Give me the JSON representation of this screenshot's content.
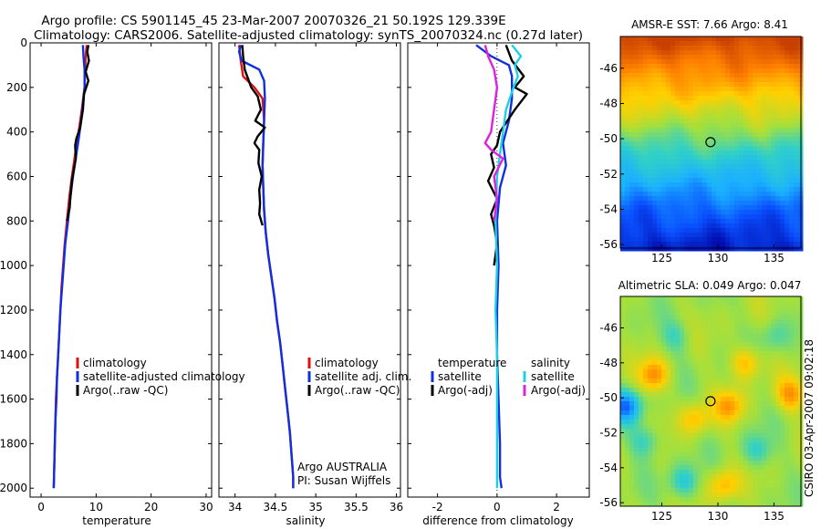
{
  "header": {
    "line1": "Argo profile: CS 5901145_45 23-Mar-2007 20070326_21 50.192S 129.339E",
    "line2": "Climatology: CARS2006. Satellite-adjusted climatology: synTS_20070324.nc (0.27d later)"
  },
  "watermark": "CSIRO 03-Apr-2007 09:02:18",
  "colors": {
    "climatology": "#e01010",
    "satellite": "#1030e0",
    "argo": "#000000",
    "salinity_satellite": "#20d0e0",
    "salinity_argo": "#e020e0"
  },
  "chart_data": [
    {
      "type": "line",
      "id": "temperature",
      "xlabel": "temperature",
      "ylabel": "",
      "xlim": [
        -2,
        31
      ],
      "ylim": [
        2040,
        0
      ],
      "xticks": [
        0,
        10,
        20,
        30
      ],
      "yticks": [
        0,
        200,
        400,
        600,
        800,
        1000,
        1200,
        1400,
        1600,
        1800,
        2000
      ],
      "legend": [
        "climatology",
        "satellite-adjusted climatology",
        "Argo(..raw -QC)"
      ],
      "series": [
        {
          "name": "climatology",
          "color": "climatology",
          "points": [
            [
              8.3,
              10
            ],
            [
              8.1,
              60
            ],
            [
              8.0,
              120
            ],
            [
              7.9,
              200
            ],
            [
              7.4,
              300
            ],
            [
              6.7,
              420
            ],
            [
              6.2,
              500
            ],
            [
              5.6,
              600
            ],
            [
              5.1,
              700
            ],
            [
              4.7,
              800
            ],
            [
              4.3,
              900
            ],
            [
              4.0,
              1000
            ],
            [
              3.7,
              1100
            ],
            [
              3.5,
              1200
            ],
            [
              3.3,
              1300
            ],
            [
              3.1,
              1400
            ],
            [
              2.9,
              1500
            ],
            [
              2.7,
              1600
            ],
            [
              2.6,
              1700
            ],
            [
              2.5,
              1800
            ],
            [
              2.4,
              1900
            ],
            [
              2.3,
              2000
            ]
          ]
        },
        {
          "name": "satellite-adjusted climatology",
          "color": "satellite",
          "points": [
            [
              7.6,
              10
            ],
            [
              7.7,
              60
            ],
            [
              7.9,
              120
            ],
            [
              7.9,
              200
            ],
            [
              7.5,
              300
            ],
            [
              6.9,
              420
            ],
            [
              6.4,
              500
            ],
            [
              5.8,
              600
            ],
            [
              5.3,
              700
            ],
            [
              4.9,
              800
            ],
            [
              4.4,
              900
            ],
            [
              4.1,
              1000
            ],
            [
              3.8,
              1100
            ],
            [
              3.5,
              1200
            ],
            [
              3.3,
              1300
            ],
            [
              3.1,
              1400
            ],
            [
              2.9,
              1500
            ],
            [
              2.8,
              1600
            ],
            [
              2.6,
              1700
            ],
            [
              2.5,
              1800
            ],
            [
              2.4,
              1900
            ],
            [
              2.3,
              2000
            ]
          ]
        },
        {
          "name": "Argo(..raw -QC)",
          "color": "argo",
          "points": [
            [
              8.6,
              10
            ],
            [
              8.4,
              40
            ],
            [
              8.7,
              80
            ],
            [
              8.1,
              130
            ],
            [
              8.6,
              170
            ],
            [
              7.8,
              230
            ],
            [
              7.6,
              300
            ],
            [
              7.1,
              380
            ],
            [
              6.4,
              430
            ],
            [
              6.2,
              460
            ],
            [
              6.3,
              520
            ],
            [
              5.6,
              620
            ],
            [
              5.3,
              700
            ],
            [
              5.2,
              740
            ],
            [
              4.7,
              800
            ]
          ]
        }
      ]
    },
    {
      "type": "line",
      "id": "salinity",
      "xlabel": "salinity",
      "ylabel": "",
      "xlim": [
        33.8,
        36.05
      ],
      "ylim": [
        2040,
        0
      ],
      "xticks": [
        34,
        34.5,
        35,
        35.5,
        36
      ],
      "yticks": [
        0,
        200,
        400,
        600,
        800,
        1000,
        1200,
        1400,
        1600,
        1800,
        2000
      ],
      "legend": [
        "climatology",
        "satellite adj. clim.",
        "Argo(..raw -QC)"
      ],
      "annotation": [
        "Argo AUSTRALIA",
        "PI: Susan Wijffels"
      ],
      "series": [
        {
          "name": "climatology",
          "color": "climatology",
          "points": [
            [
              34.05,
              10
            ],
            [
              34.07,
              80
            ],
            [
              34.1,
              150
            ],
            [
              34.24,
              200
            ],
            [
              34.34,
              250
            ],
            [
              34.36,
              350
            ],
            [
              34.35,
              450
            ],
            [
              34.34,
              550
            ],
            [
              34.35,
              650
            ],
            [
              34.36,
              750
            ],
            [
              34.38,
              850
            ],
            [
              34.41,
              950
            ],
            [
              34.45,
              1050
            ],
            [
              34.49,
              1150
            ],
            [
              34.52,
              1250
            ],
            [
              34.56,
              1350
            ],
            [
              34.59,
              1450
            ],
            [
              34.62,
              1550
            ],
            [
              34.65,
              1650
            ],
            [
              34.68,
              1750
            ],
            [
              34.7,
              1850
            ],
            [
              34.72,
              1950
            ],
            [
              34.72,
              2000
            ]
          ]
        },
        {
          "name": "satellite adj. clim.",
          "color": "satellite",
          "points": [
            [
              34.07,
              10
            ],
            [
              34.05,
              40
            ],
            [
              34.08,
              80
            ],
            [
              34.3,
              120
            ],
            [
              34.36,
              170
            ],
            [
              34.37,
              250
            ],
            [
              34.36,
              350
            ],
            [
              34.35,
              450
            ],
            [
              34.34,
              550
            ],
            [
              34.35,
              650
            ],
            [
              34.36,
              750
            ],
            [
              34.38,
              850
            ],
            [
              34.41,
              950
            ],
            [
              34.45,
              1050
            ],
            [
              34.49,
              1150
            ],
            [
              34.52,
              1250
            ],
            [
              34.56,
              1350
            ],
            [
              34.59,
              1450
            ],
            [
              34.62,
              1550
            ],
            [
              34.65,
              1650
            ],
            [
              34.68,
              1750
            ],
            [
              34.7,
              1850
            ],
            [
              34.72,
              1950
            ],
            [
              34.72,
              2000
            ]
          ]
        },
        {
          "name": "Argo(..raw -QC)",
          "color": "argo",
          "points": [
            [
              34.09,
              10
            ],
            [
              34.1,
              60
            ],
            [
              34.12,
              120
            ],
            [
              34.2,
              200
            ],
            [
              34.28,
              240
            ],
            [
              34.32,
              300
            ],
            [
              34.25,
              350
            ],
            [
              34.37,
              380
            ],
            [
              34.28,
              420
            ],
            [
              34.24,
              450
            ],
            [
              34.3,
              480
            ],
            [
              34.29,
              540
            ],
            [
              34.33,
              600
            ],
            [
              34.3,
              660
            ],
            [
              34.31,
              720
            ],
            [
              34.3,
              770
            ],
            [
              34.34,
              820
            ]
          ]
        }
      ]
    },
    {
      "type": "line",
      "id": "difference",
      "xlabel": "difference from climatology",
      "ylabel": "",
      "xlim": [
        -3,
        3.1
      ],
      "ylim": [
        2040,
        0
      ],
      "xticks": [
        -2,
        0,
        2
      ],
      "yticks": [
        0,
        200,
        400,
        600,
        800,
        1000,
        1200,
        1400,
        1600,
        1800,
        2000
      ],
      "legend_temperature_title": "temperature",
      "legend_temperature": [
        "satellite",
        "Argo(-adj)"
      ],
      "legend_salinity_title": "salinity",
      "legend_salinity": [
        "satellite",
        "Argo(-adj)"
      ],
      "series": [
        {
          "name": "temperature satellite",
          "color": "satellite",
          "points": [
            [
              -0.7,
              10
            ],
            [
              -0.2,
              60
            ],
            [
              0.4,
              100
            ],
            [
              0.5,
              150
            ],
            [
              0.5,
              250
            ],
            [
              0.4,
              350
            ],
            [
              0.2,
              450
            ],
            [
              0.3,
              550
            ],
            [
              0.1,
              650
            ],
            [
              0.0,
              800
            ],
            [
              0.05,
              1000
            ],
            [
              0.0,
              1200
            ],
            [
              0.0,
              1400
            ],
            [
              0.05,
              1600
            ],
            [
              0.1,
              1800
            ],
            [
              0.1,
              1950
            ],
            [
              0.15,
              2000
            ]
          ]
        },
        {
          "name": "temperature Argo(-adj)",
          "color": "argo",
          "points": [
            [
              0.3,
              10
            ],
            [
              0.5,
              80
            ],
            [
              0.9,
              150
            ],
            [
              0.6,
              200
            ],
            [
              1.0,
              230
            ],
            [
              0.6,
              300
            ],
            [
              0.1,
              400
            ],
            [
              0.0,
              460
            ],
            [
              -0.2,
              500
            ],
            [
              -0.1,
              560
            ],
            [
              -0.3,
              620
            ],
            [
              0.0,
              700
            ],
            [
              -0.2,
              770
            ],
            [
              -0.1,
              820
            ],
            [
              0.0,
              900
            ],
            [
              -0.1,
              1000
            ]
          ]
        },
        {
          "name": "salinity satellite",
          "color": "salinity_satellite",
          "points": [
            [
              0.5,
              10
            ],
            [
              0.8,
              60
            ],
            [
              0.6,
              100
            ],
            [
              0.7,
              150
            ],
            [
              0.5,
              220
            ],
            [
              0.3,
              300
            ],
            [
              0.2,
              400
            ],
            [
              0.1,
              500
            ],
            [
              0.0,
              600
            ],
            [
              -0.05,
              800
            ],
            [
              0.0,
              1000
            ],
            [
              -0.05,
              1200
            ],
            [
              0.0,
              1400
            ],
            [
              0.0,
              1600
            ],
            [
              0.0,
              1800
            ],
            [
              0.0,
              2000
            ]
          ]
        },
        {
          "name": "salinity Argo(-adj)",
          "color": "salinity_argo",
          "points": [
            [
              -0.4,
              10
            ],
            [
              -0.3,
              60
            ],
            [
              -0.1,
              120
            ],
            [
              0.0,
              200
            ],
            [
              -0.1,
              300
            ],
            [
              -0.2,
              400
            ],
            [
              -0.4,
              450
            ],
            [
              -0.2,
              480
            ],
            [
              0.2,
              520
            ],
            [
              -0.1,
              600
            ],
            [
              0.0,
              700
            ],
            [
              -0.1,
              800
            ]
          ]
        }
      ]
    },
    {
      "type": "heatmap",
      "id": "sst_map",
      "title": "AMSR-E SST: 7.66 Argo: 8.41",
      "xlim": [
        121.3,
        137.4
      ],
      "ylim": [
        -56.2,
        -44.2
      ],
      "xticks": [
        125,
        130,
        135
      ],
      "yticks": [
        -46,
        -48,
        -50,
        -52,
        -54,
        -56
      ],
      "marker": [
        129.339,
        -50.192
      ],
      "palette": [
        "#0000a0",
        "#0a50ff",
        "#1ab0ff",
        "#30d0c8",
        "#a0e040",
        "#ffd000",
        "#ff8000",
        "#c84000"
      ],
      "bands": [
        {
          "lat": -44.2,
          "level": 7.0
        },
        {
          "lat": -47.0,
          "level": 5.4
        },
        {
          "lat": -49.0,
          "level": 4.2
        },
        {
          "lat": -50.5,
          "level": 3.2
        },
        {
          "lat": -52.0,
          "level": 2.3
        },
        {
          "lat": -54.0,
          "level": 1.2
        },
        {
          "lat": -56.2,
          "level": 0.4
        }
      ]
    },
    {
      "type": "heatmap",
      "id": "sla_map",
      "title": "Altimetric SLA: 0.049 Argo: 0.047",
      "xlim": [
        121.3,
        137.4
      ],
      "ylim": [
        -56.2,
        -44.2
      ],
      "xticks": [
        125,
        130,
        135
      ],
      "yticks": [
        -46,
        -48,
        -50,
        -52,
        -54,
        -56
      ],
      "marker": [
        129.339,
        -50.192
      ],
      "palette": [
        "#0000a0",
        "#0a50ff",
        "#1ab0ff",
        "#30d0c8",
        "#a0e040",
        "#ffd000",
        "#ff8000",
        "#c84000"
      ],
      "base_level": 4.0,
      "blobs": [
        {
          "lon": 121.8,
          "lat": -50.5,
          "level": 1.5
        },
        {
          "lon": 123.5,
          "lat": -52.5,
          "level": 3.0
        },
        {
          "lon": 124.3,
          "lat": -48.7,
          "level": 5.8
        },
        {
          "lon": 126.2,
          "lat": -46.5,
          "level": 3.2
        },
        {
          "lon": 128.0,
          "lat": -51.2,
          "level": 5.2
        },
        {
          "lon": 131.0,
          "lat": -50.5,
          "level": 5.5
        },
        {
          "lon": 132.5,
          "lat": -48.0,
          "level": 5.4
        },
        {
          "lon": 133.5,
          "lat": -53.0,
          "level": 3.0
        },
        {
          "lon": 135.0,
          "lat": -46.5,
          "level": 3.3
        },
        {
          "lon": 136.5,
          "lat": -49.8,
          "level": 5.6
        },
        {
          "lon": 130.5,
          "lat": -55.0,
          "level": 5.3
        },
        {
          "lon": 127.0,
          "lat": -54.8,
          "level": 2.8
        }
      ]
    }
  ]
}
